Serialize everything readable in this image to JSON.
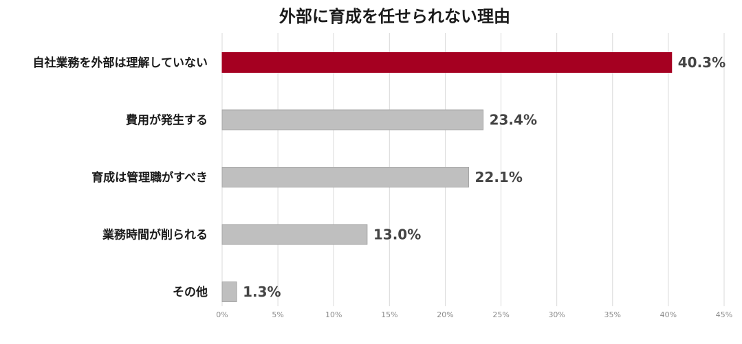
{
  "chart_data": {
    "type": "bar",
    "orientation": "horizontal",
    "title": "外部に育成を任せられない理由",
    "categories": [
      "自社業務を外部は理解していない",
      "費用が発生する",
      "育成は管理職がすべき",
      "業務時間が削られる",
      "その他"
    ],
    "values": [
      40.3,
      23.4,
      22.1,
      13.0,
      1.3
    ],
    "value_labels": [
      "40.3%",
      "23.4%",
      "22.1%",
      "13.0%",
      "1.3%"
    ],
    "x_ticks": [
      "0%",
      "5%",
      "10%",
      "15%",
      "20%",
      "25%",
      "30%",
      "35%",
      "40%",
      "45%"
    ],
    "xlim": [
      0,
      45
    ],
    "grid": true,
    "legend": "none",
    "colors": {
      "highlight": "#a50021",
      "default": "#bfbfbf",
      "default_stroke": "#a6a6a6"
    },
    "highlight_index": 0
  }
}
